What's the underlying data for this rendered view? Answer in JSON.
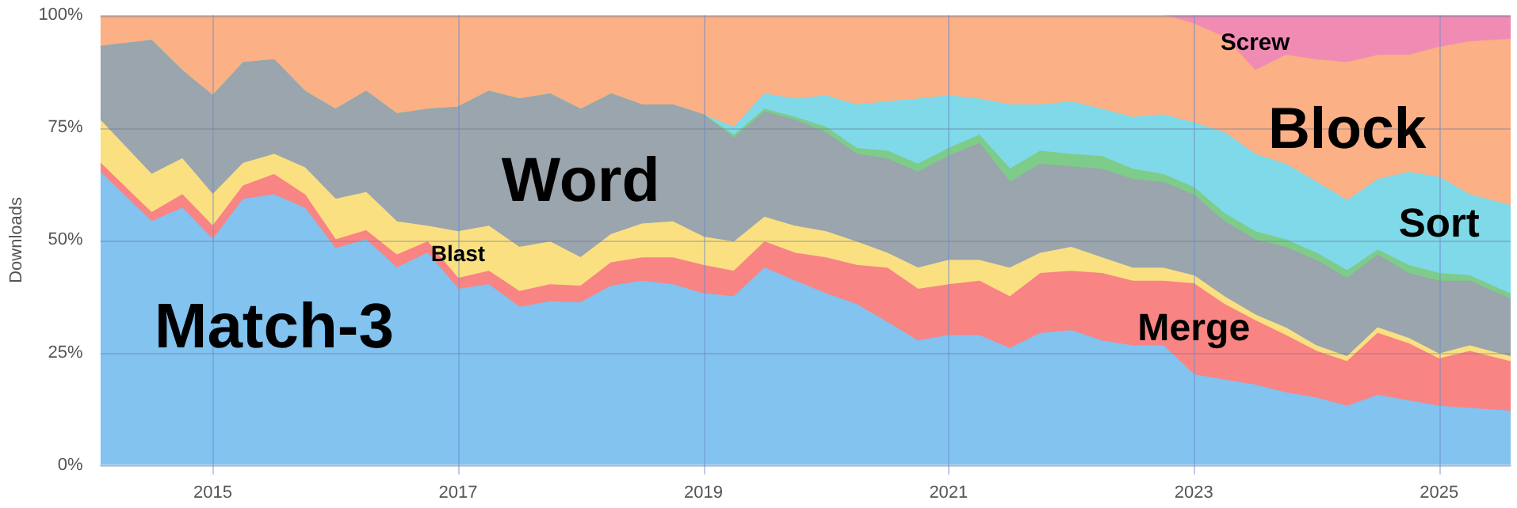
{
  "chart_data": {
    "type": "area",
    "stacked": true,
    "ylabel": "Downloads",
    "x": [
      "2014-02",
      "2014-07",
      "2014-10",
      "2015-01",
      "2015-04",
      "2015-07",
      "2015-10",
      "2016-01",
      "2016-04",
      "2016-07",
      "2016-10",
      "2017-01",
      "2017-04",
      "2017-07",
      "2017-10",
      "2018-01",
      "2018-04",
      "2018-07",
      "2018-10",
      "2019-01",
      "2019-04",
      "2019-07",
      "2019-10",
      "2020-01",
      "2020-04",
      "2020-07",
      "2020-10",
      "2021-01",
      "2021-04",
      "2021-07",
      "2021-10",
      "2022-01",
      "2022-04",
      "2022-07",
      "2022-10",
      "2023-01",
      "2023-04",
      "2023-07",
      "2023-10",
      "2024-01",
      "2024-04",
      "2024-07",
      "2024-10",
      "2025-01",
      "2025-04",
      "2025-08"
    ],
    "series": [
      {
        "name": "Match-3",
        "color": "#82c3f0",
        "values": [
          65,
          54,
          57,
          50,
          59,
          60,
          57,
          48,
          50,
          43.7,
          47,
          39,
          40,
          35,
          36.2,
          36,
          39.7,
          40.8,
          40,
          38,
          37.3,
          43.7,
          40.8,
          38,
          35.6,
          31.6,
          27.5,
          28.7,
          28.7,
          25.8,
          29.2,
          29.8,
          27.5,
          26.4,
          26.4,
          20,
          18.8,
          17.7,
          16,
          14.8,
          13,
          15.4,
          14.2,
          13,
          12.5,
          11.9
        ]
      },
      {
        "name": "Merge",
        "color": "#f98484",
        "values": [
          2,
          2,
          3,
          3,
          3,
          4.5,
          3,
          2,
          2,
          2.9,
          2.5,
          2.4,
          3,
          3.5,
          3.8,
          3.7,
          5.2,
          5.2,
          6,
          6.3,
          5.7,
          5.8,
          6.2,
          8,
          8.7,
          12.1,
          11.5,
          11.3,
          12.1,
          11.5,
          13.3,
          13.2,
          15,
          14.4,
          14.4,
          20.2,
          16.8,
          14.3,
          12.7,
          10.4,
          9.9,
          13.8,
          12.7,
          10.5,
          12.7,
          11
        ]
      },
      {
        "name": "Blast",
        "color": "#fbe082",
        "values": [
          9.5,
          8.5,
          8,
          7,
          5,
          4.5,
          6,
          9,
          8.5,
          7.4,
          3.5,
          10.4,
          10,
          9.8,
          9.5,
          6.3,
          6.3,
          7.5,
          8,
          6.3,
          6.5,
          5.5,
          6,
          5.8,
          5.2,
          3.3,
          4.7,
          5.4,
          4.6,
          6.4,
          4.5,
          5.3,
          3.5,
          2.9,
          2.9,
          1.8,
          1.7,
          1.3,
          1.7,
          1.2,
          1.1,
          1.2,
          1.2,
          1.1,
          1.2,
          1.1
        ]
      },
      {
        "name": "Word",
        "color": "#9aa5ad",
        "values": [
          16.5,
          29.8,
          19.6,
          22,
          22.4,
          21,
          17,
          20,
          22.5,
          24,
          26,
          27.7,
          30,
          33,
          32.9,
          33,
          31.2,
          26.5,
          26,
          27.2,
          23.1,
          23.4,
          23.6,
          22,
          19.5,
          21,
          21.3,
          23.1,
          26,
          19.1,
          19.8,
          17.9,
          19.7,
          19.7,
          19.1,
          17.9,
          16.7,
          16.7,
          17.9,
          19,
          17.4,
          16.2,
          14.4,
          16.2,
          14.4,
          12.8
        ]
      },
      {
        "color": "#7dcc8a",
        "values": [
          0,
          0,
          0,
          0,
          0,
          0,
          0,
          0,
          0,
          0,
          0,
          0,
          0,
          0,
          0,
          0,
          0,
          0,
          0,
          0,
          0.6,
          0.6,
          0.6,
          1.2,
          1.3,
          1.7,
          1.8,
          1.8,
          1.8,
          2.9,
          2.9,
          2.8,
          2.8,
          2.3,
          1.7,
          1.7,
          1.8,
          1.8,
          1.7,
          1.6,
          1.7,
          1.1,
          1.8,
          1.7,
          1.2,
          1.1
        ]
      },
      {
        "name": "Sort",
        "color": "#7fd9e8",
        "values": [
          0,
          0,
          0,
          0,
          0,
          0,
          0,
          0,
          0,
          0,
          0,
          0,
          0,
          0,
          0,
          0,
          0,
          0,
          0,
          0,
          1.8,
          3.4,
          4.1,
          7,
          9.7,
          11,
          14.5,
          11.7,
          8.1,
          14.3,
          10.3,
          11.7,
          10.5,
          11.5,
          13.3,
          14.4,
          18,
          17.2,
          16.8,
          15.8,
          15.6,
          15.7,
          20.7,
          21.4,
          18,
          19.7
        ]
      },
      {
        "name": "Block",
        "color": "#fbb085",
        "values": [
          7,
          5.7,
          12.4,
          18,
          10.6,
          10,
          17,
          21,
          17,
          22,
          21,
          20.5,
          17,
          18.7,
          17.6,
          21,
          17.6,
          20,
          20,
          22.2,
          25,
          17.6,
          18.7,
          18,
          20,
          19.3,
          18.7,
          18,
          18.7,
          20,
          20,
          19.3,
          21,
          22.8,
          22.2,
          22,
          21.2,
          18.6,
          24.2,
          27.2,
          30.7,
          27.6,
          26,
          28.9,
          34,
          37
        ]
      },
      {
        "name": "Screw",
        "color": "#f08cb4",
        "values": [
          null,
          null,
          null,
          null,
          null,
          null,
          null,
          null,
          null,
          null,
          null,
          null,
          null,
          null,
          null,
          null,
          null,
          null,
          null,
          null,
          null,
          null,
          null,
          null,
          null,
          null,
          null,
          null,
          null,
          null,
          null,
          null,
          null,
          null,
          0,
          2,
          5,
          12.4,
          9,
          10,
          10.6,
          9,
          9,
          7.2,
          6,
          5.4
        ]
      }
    ],
    "xlim": [
      "2014-02",
      "2025-08"
    ],
    "xticks": [
      "2015",
      "2017",
      "2019",
      "2021",
      "2023",
      "2025"
    ],
    "ylim": [
      0,
      100
    ],
    "yticks": [
      {
        "value": 0,
        "label": "0%"
      },
      {
        "value": 25,
        "label": "25%"
      },
      {
        "value": 50,
        "label": "50%"
      },
      {
        "value": 75,
        "label": "75%"
      },
      {
        "value": 100,
        "label": "100%"
      }
    ],
    "grid": true,
    "legend": false
  }
}
